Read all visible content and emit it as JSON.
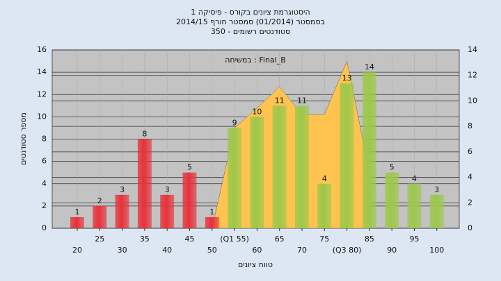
{
  "chart_data": {
    "type": "bar",
    "title": "היסטוגרמת ציונים בקורס - פיסיקה 1",
    "subtitle": "בסמסטר  (01/2014)  סמסטר חורף 2014/15",
    "subtitle2": "סטודנטים רשומים - 350",
    "annotation": "במשיחה : Final_B",
    "x_label": "טווח ציונים",
    "y_label": "מספר סטודנטים",
    "categories": [
      "20",
      "25",
      "30",
      "35",
      "40",
      "45",
      "50",
      "(Q1 55)",
      "60",
      "65",
      "70",
      "75",
      "(Q3 80)",
      "85",
      "90",
      "95",
      "100"
    ],
    "values": [
      1,
      2,
      3,
      8,
      3,
      5,
      1,
      9,
      10,
      11,
      11,
      4,
      13,
      14,
      5,
      4,
      3
    ],
    "colors": [
      "#e8313a",
      "#e8313a",
      "#e8313a",
      "#e8313a",
      "#e8313a",
      "#e8313a",
      "#e8313a",
      "#9cc84a",
      "#9cc84a",
      "#9cc84a",
      "#9cc84a",
      "#9cc84a",
      "#9cc84a",
      "#9cc84a",
      "#9cc84a",
      "#9cc84a",
      "#9cc84a"
    ],
    "area": {
      "color": "#ffc44f",
      "values": [
        null,
        null,
        null,
        null,
        null,
        null,
        0,
        9,
        10.8,
        12.7,
        10.2,
        10.2,
        15,
        5,
        null,
        null,
        null
      ]
    },
    "ylim": [
      0,
      16
    ],
    "yticks": [
      0,
      2,
      4,
      6,
      8,
      10,
      12,
      14,
      16
    ],
    "y2lim": [
      0,
      14
    ],
    "y2ticks": [
      0,
      2,
      4,
      6,
      8,
      10,
      12,
      14
    ],
    "grid": true
  }
}
